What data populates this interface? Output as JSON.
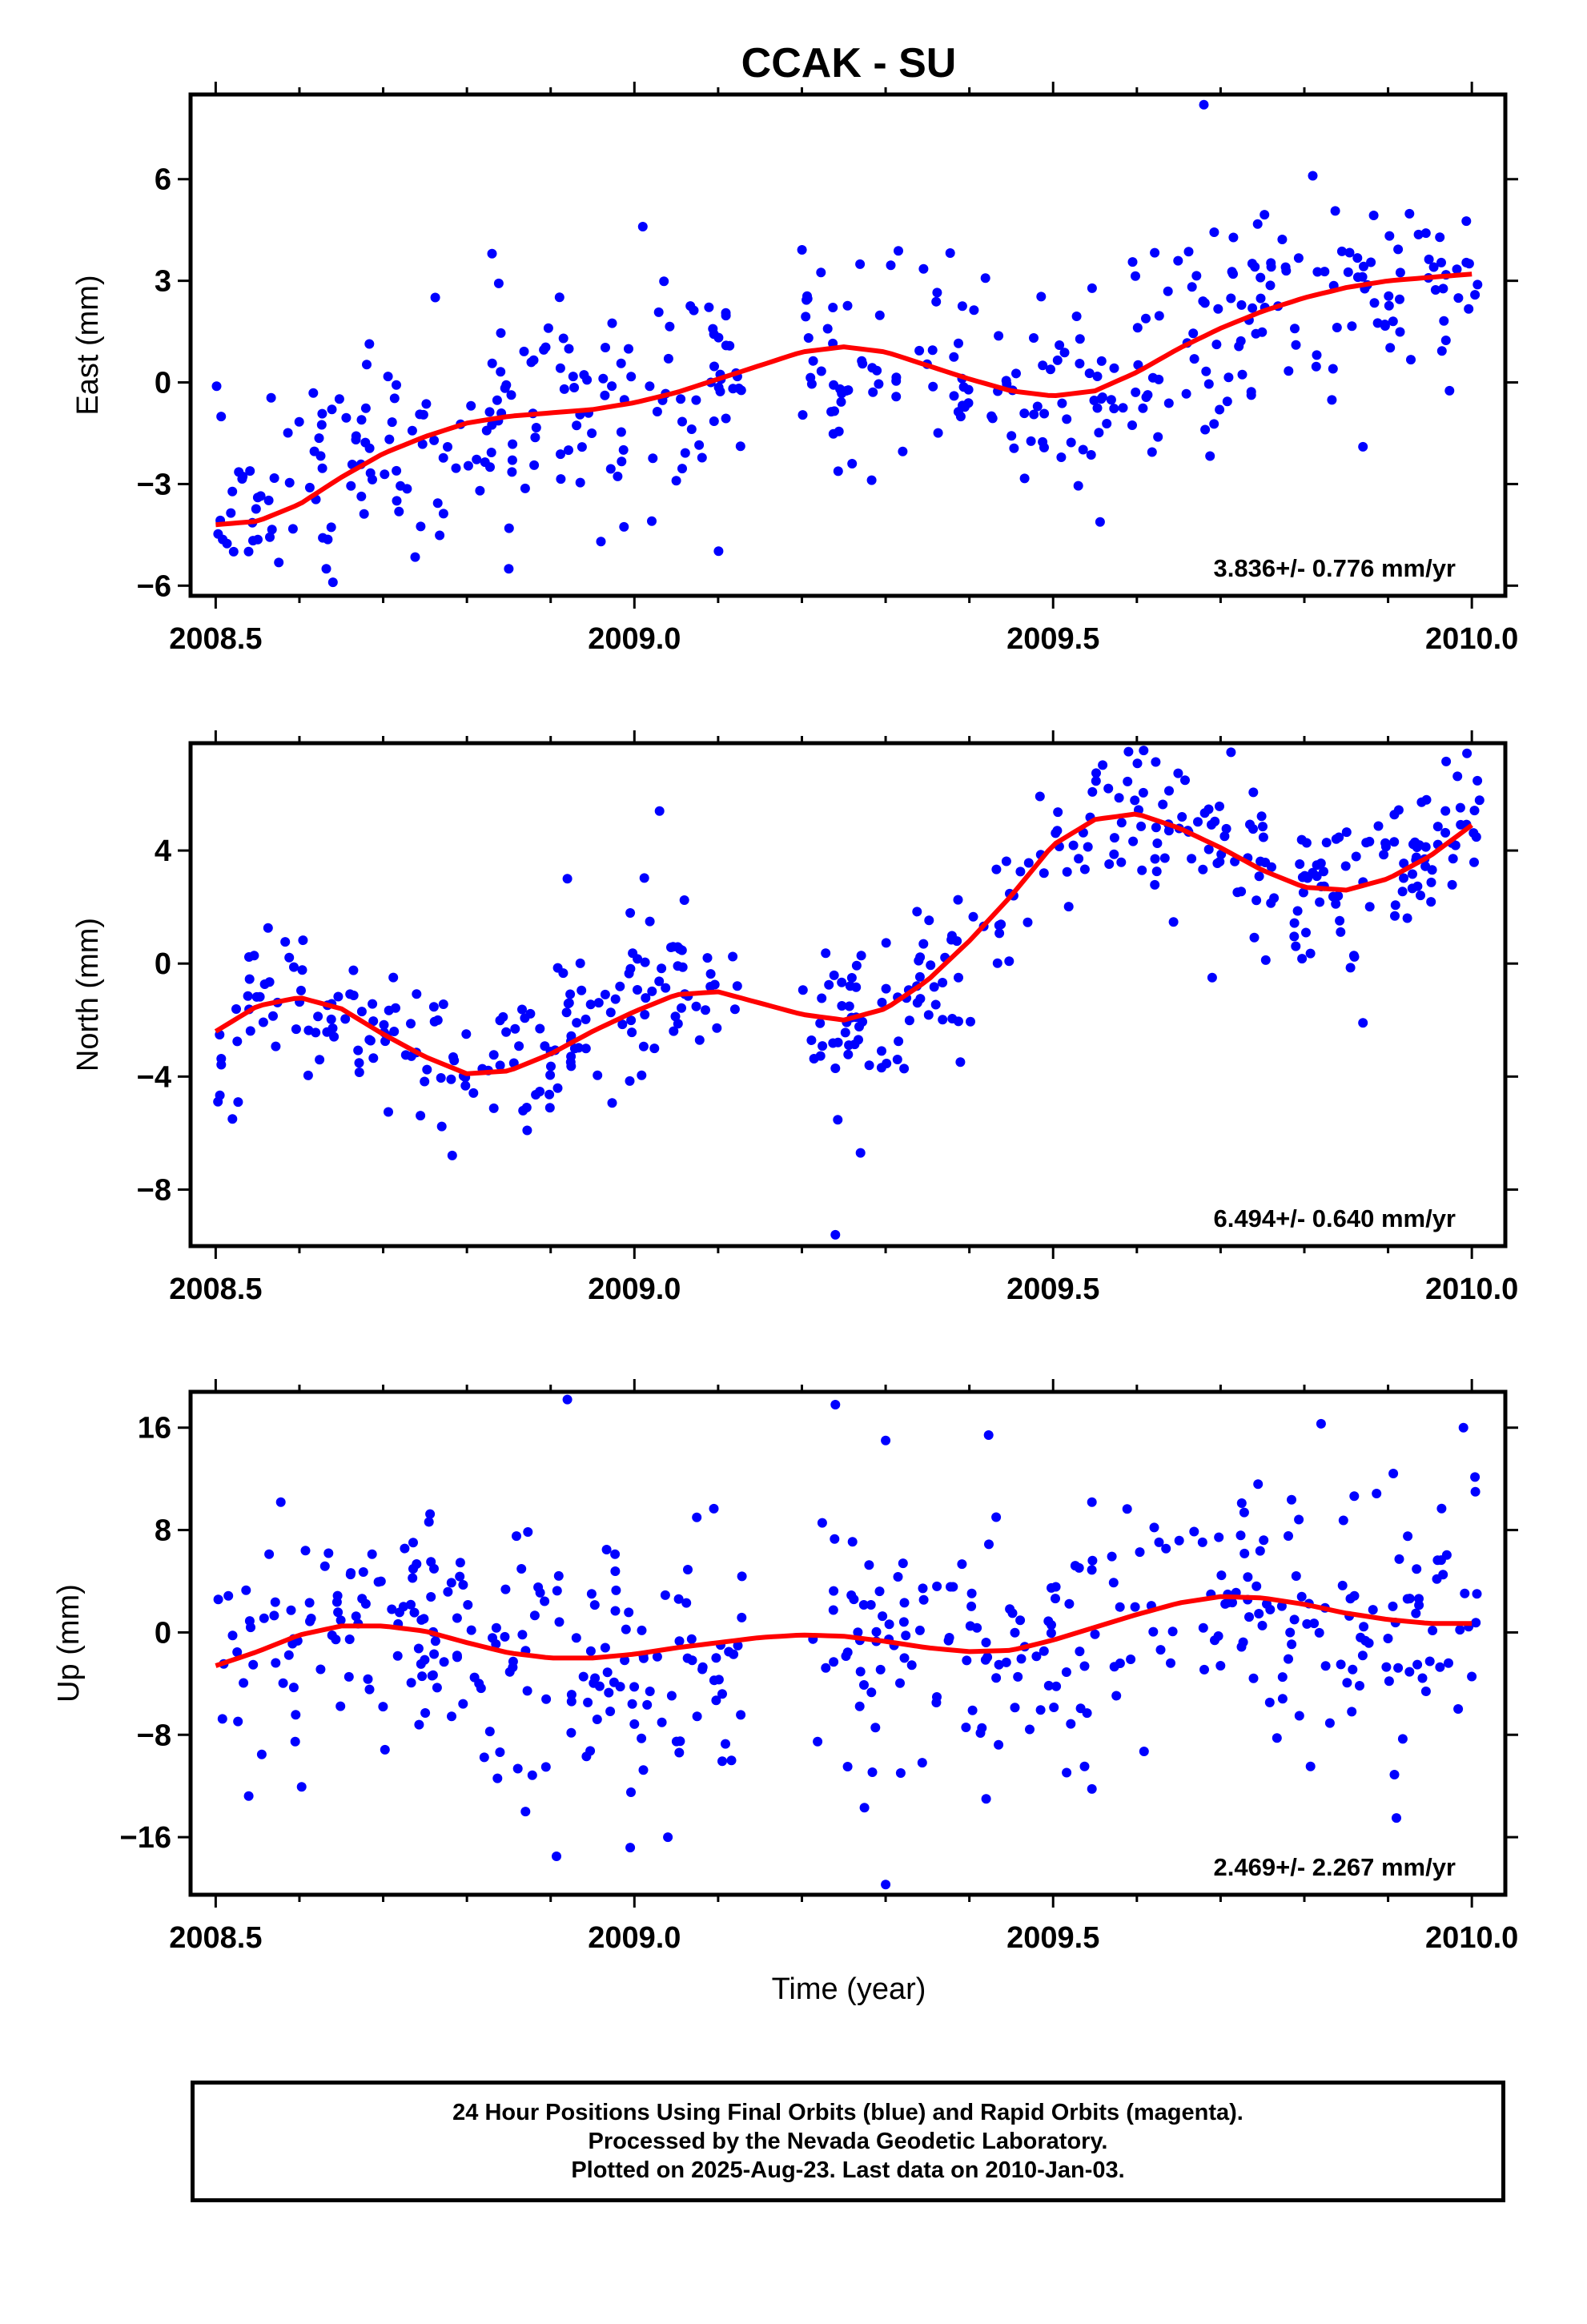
{
  "title": "CCAK - SU",
  "xlabel": "Time (year)",
  "footer": {
    "lines": [
      "24 Hour Positions Using Final Orbits (blue) and Rapid Orbits (magenta).",
      "Processed by the Nevada Geodetic Laboratory.",
      "Plotted on 2025-Aug-23. Last data on 2010-Jan-03."
    ]
  },
  "colors": {
    "points": "#0000ff",
    "fit": "#ff0000",
    "axis": "#000000"
  },
  "chart_data": [
    {
      "type": "scatter",
      "panel": "east",
      "ylabel": "East (mm)",
      "xlim": [
        2008.47,
        2010.04
      ],
      "ylim": [
        -6.3,
        8.5
      ],
      "xticks": [
        2008.5,
        2009.0,
        2009.5,
        2010.0
      ],
      "xtick_labels": [
        "2008.5",
        "2009.0",
        "2009.5",
        "2010.0"
      ],
      "yticks": [
        -6,
        -3,
        0,
        3,
        6
      ],
      "ytick_labels": [
        "−6",
        "−3",
        "0",
        "3",
        "6"
      ],
      "rate": "3.836+/- 0.776 mm/yr",
      "fit_line": {
        "x": [
          2008.5,
          2008.55,
          2008.6,
          2008.65,
          2008.7,
          2008.75,
          2008.8,
          2008.85,
          2008.9,
          2008.95,
          2009.0,
          2009.05,
          2009.1,
          2009.15,
          2009.2,
          2009.25,
          2009.3,
          2009.35,
          2009.4,
          2009.45,
          2009.5,
          2009.55,
          2009.6,
          2009.65,
          2009.7,
          2009.75,
          2009.8,
          2009.85,
          2009.9,
          2009.95,
          2010.0
        ],
        "y": [
          -4.2,
          -4.1,
          -3.6,
          -2.8,
          -2.1,
          -1.6,
          -1.2,
          -1.0,
          -0.9,
          -0.8,
          -0.6,
          -0.3,
          0.1,
          0.5,
          0.9,
          1.05,
          0.9,
          0.5,
          0.1,
          -0.25,
          -0.4,
          -0.25,
          0.3,
          1.0,
          1.6,
          2.1,
          2.5,
          2.8,
          3.0,
          3.1,
          3.2
        ]
      },
      "points": {
        "outliers": [
          {
            "x": 2009.68,
            "y": 8.2
          },
          {
            "x": 2008.64,
            "y": -5.9
          },
          {
            "x": 2009.01,
            "y": 4.6
          },
          {
            "x": 2009.26,
            "y": -2.4
          },
          {
            "x": 2009.87,
            "y": -1.9
          },
          {
            "x": 2009.81,
            "y": 6.1
          },
          {
            "x": 2008.83,
            "y": 3.8
          },
          {
            "x": 2008.96,
            "y": -4.7
          },
          {
            "x": 2008.85,
            "y": -5.5
          }
        ],
        "residual_spread": 1.5,
        "count": 470
      }
    },
    {
      "type": "scatter",
      "panel": "north",
      "ylabel": "North (mm)",
      "xlim": [
        2008.47,
        2010.04
      ],
      "ylim": [
        -10.0,
        7.8
      ],
      "xticks": [
        2008.5,
        2009.0,
        2009.5,
        2010.0
      ],
      "xtick_labels": [
        "2008.5",
        "2009.0",
        "2009.5",
        "2010.0"
      ],
      "yticks": [
        -8,
        -4,
        0,
        4
      ],
      "ytick_labels": [
        "−8",
        "−4",
        "0",
        "4"
      ],
      "rate": "6.494+/- 0.640 mm/yr",
      "fit_line": {
        "x": [
          2008.5,
          2008.55,
          2008.6,
          2008.65,
          2008.7,
          2008.75,
          2008.8,
          2008.85,
          2008.9,
          2008.95,
          2009.0,
          2009.05,
          2009.1,
          2009.15,
          2009.2,
          2009.25,
          2009.3,
          2009.35,
          2009.4,
          2009.45,
          2009.5,
          2009.55,
          2009.6,
          2009.65,
          2009.7,
          2009.75,
          2009.8,
          2009.85,
          2009.9,
          2009.95,
          2010.0
        ],
        "y": [
          -2.4,
          -1.5,
          -1.2,
          -1.6,
          -2.5,
          -3.3,
          -3.9,
          -3.8,
          -3.2,
          -2.4,
          -1.7,
          -1.1,
          -1.0,
          -1.4,
          -1.8,
          -2.0,
          -1.6,
          -0.6,
          0.8,
          2.4,
          4.2,
          5.1,
          5.3,
          4.8,
          4.1,
          3.3,
          2.7,
          2.6,
          3.0,
          3.8,
          4.9
        ]
      },
      "points": {
        "outliers": [
          {
            "x": 2009.24,
            "y": -9.6
          },
          {
            "x": 2009.03,
            "y": 5.4
          },
          {
            "x": 2008.92,
            "y": 3.0
          },
          {
            "x": 2009.69,
            "y": -0.5
          },
          {
            "x": 2009.87,
            "y": -2.1
          },
          {
            "x": 2009.59,
            "y": 7.5
          },
          {
            "x": 2009.27,
            "y": -6.7
          },
          {
            "x": 2008.52,
            "y": -5.5
          }
        ],
        "residual_spread": 1.4,
        "count": 470
      }
    },
    {
      "type": "scatter",
      "panel": "up",
      "ylabel": "Up (mm)",
      "xlim": [
        2008.47,
        2010.04
      ],
      "ylim": [
        -20.5,
        18.8
      ],
      "xticks": [
        2008.5,
        2009.0,
        2009.5,
        2010.0
      ],
      "xtick_labels": [
        "2008.5",
        "2009.0",
        "2009.5",
        "2010.0"
      ],
      "yticks": [
        -16,
        -8,
        0,
        8,
        16
      ],
      "ytick_labels": [
        "−16",
        "−8",
        "0",
        "8",
        "16"
      ],
      "rate": "2.469+/- 2.267 mm/yr",
      "fit_line": {
        "x": [
          2008.5,
          2008.55,
          2008.6,
          2008.65,
          2008.7,
          2008.75,
          2008.8,
          2008.85,
          2008.9,
          2008.95,
          2009.0,
          2009.05,
          2009.1,
          2009.15,
          2009.2,
          2009.25,
          2009.3,
          2009.35,
          2009.4,
          2009.45,
          2009.5,
          2009.55,
          2009.6,
          2009.65,
          2009.7,
          2009.75,
          2009.8,
          2009.85,
          2009.9,
          2009.95,
          2010.0
        ],
        "y": [
          -2.6,
          -1.5,
          -0.2,
          0.5,
          0.5,
          0.1,
          -0.8,
          -1.6,
          -2.0,
          -2.0,
          -1.7,
          -1.2,
          -0.8,
          -0.4,
          -0.2,
          -0.3,
          -0.7,
          -1.2,
          -1.5,
          -1.4,
          -0.6,
          0.4,
          1.4,
          2.3,
          2.8,
          2.7,
          2.2,
          1.5,
          1.0,
          0.7,
          0.7
        ]
      },
      "points": {
        "outliers": [
          {
            "x": 2008.92,
            "y": 18.2
          },
          {
            "x": 2009.24,
            "y": 17.8
          },
          {
            "x": 2009.3,
            "y": -19.7
          },
          {
            "x": 2009.04,
            "y": -16.0
          },
          {
            "x": 2009.91,
            "y": -14.5
          },
          {
            "x": 2009.99,
            "y": 16.0
          },
          {
            "x": 2009.82,
            "y": 16.3
          },
          {
            "x": 2008.87,
            "y": -14.0
          },
          {
            "x": 2009.3,
            "y": 15.0
          },
          {
            "x": 2009.42,
            "y": -13.0
          }
        ],
        "residual_spread": 4.8,
        "count": 470
      }
    }
  ]
}
